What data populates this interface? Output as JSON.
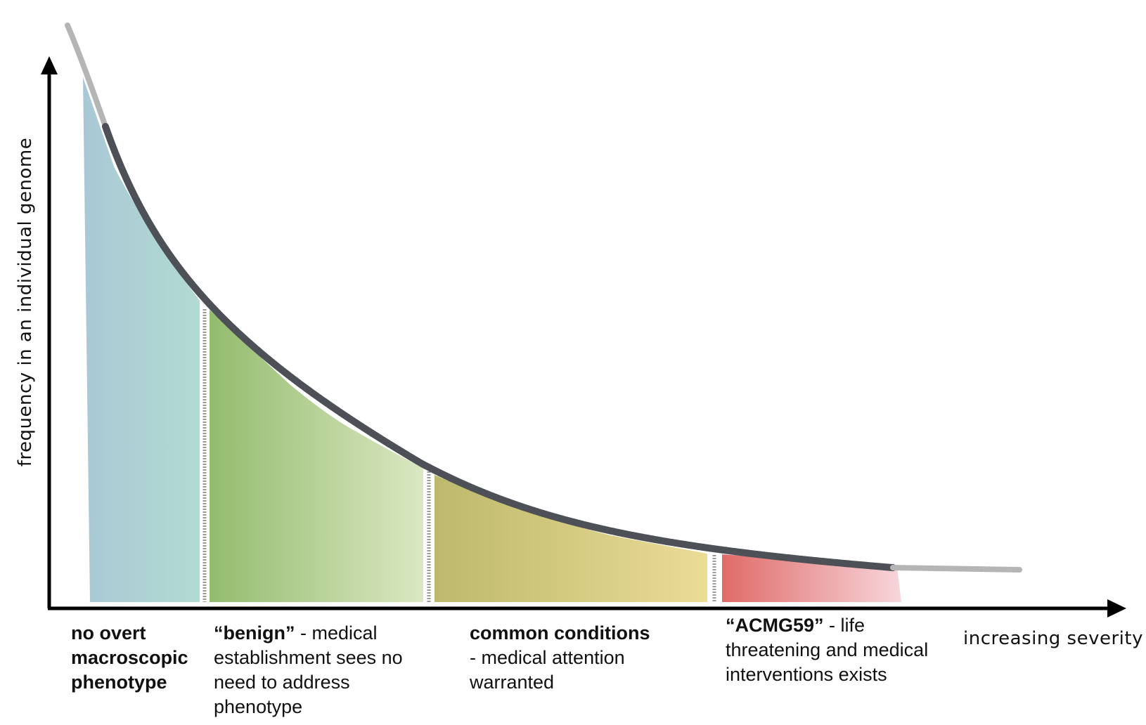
{
  "axes": {
    "y_label": "frequency in an individual genome",
    "x_label": "increasing severity"
  },
  "regions": [
    {
      "id": "no-overt",
      "label_bold": "no overt macroscopic phenotype",
      "label_rest": "",
      "color_start": "#a9c8d6",
      "color_end": "#b2dbd2"
    },
    {
      "id": "benign",
      "label_bold": "“benign”",
      "label_rest": " - medical establishment sees no need to address phenotype",
      "color_start": "#93bc6e",
      "color_end": "#dbe7c2"
    },
    {
      "id": "common",
      "label_bold": "common conditions",
      "label_rest": "- medical attention warranted",
      "color_start": "#bdb96c",
      "color_end": "#ebdc96"
    },
    {
      "id": "acmg",
      "label_bold": "“ACMG59”",
      "label_rest": " - life threatening and medical interventions exists",
      "color_start": "#e06b67",
      "color_end": "#f7d6dc"
    }
  ],
  "curve": {
    "color_main": "#4d5056",
    "color_tail": "#b5b5b5"
  }
}
